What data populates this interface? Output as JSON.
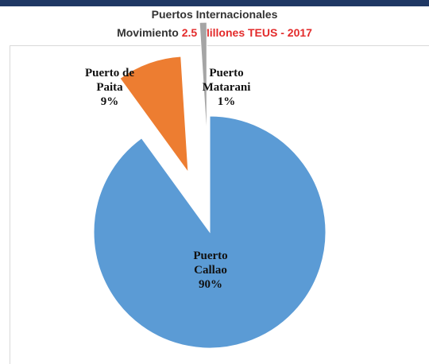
{
  "chart_data": {
    "type": "pie",
    "title": "Puertos Internacionales",
    "subtitle": {
      "text": "Movimiento",
      "highlight": "2.5 Millones TEUS - 2017"
    },
    "categories": [
      "Puerto Callao",
      "Puerto de Paita",
      "Puerto Matarani"
    ],
    "values": [
      90,
      9,
      1
    ],
    "value_labels": [
      "90%",
      "9%",
      "1%"
    ],
    "colors": [
      "#5b9bd5",
      "#ed7d31",
      "#a5a5a5"
    ]
  }
}
